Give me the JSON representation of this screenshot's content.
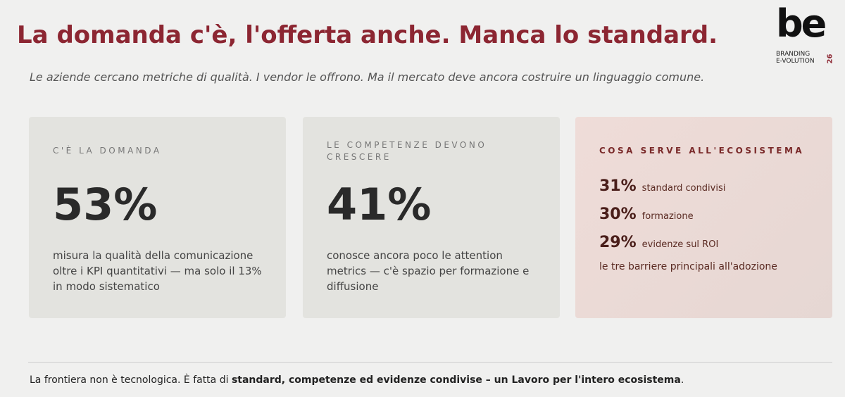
{
  "header": {
    "title": "La domanda c'è, l'offerta anche. Manca lo standard.",
    "subtitle": "Le aziende cercano metriche di qualità. I vendor le offrono. Ma il mercato deve ancora costruire un linguaggio comune."
  },
  "logo": {
    "mark": "be",
    "line1": "BRANDING",
    "line2": "E-VOLUTION",
    "year": "26"
  },
  "cards": [
    {
      "label": "C'È LA DOMANDA",
      "stat": "53%",
      "text": "misura la qualità della comunicazione oltre i KPI quantitativi — ma solo il 13% in modo sistematico"
    },
    {
      "label": "LE COMPETENZE DEVONO CRESCERE",
      "stat": "41%",
      "text": "conosce ancora poco le attention metrics — c'è spazio per formazione e diffusione"
    }
  ],
  "needs": {
    "label": "COSA SERVE ALL'ECOSISTEMA",
    "items": [
      {
        "stat": "31%",
        "text": "standard condivisi"
      },
      {
        "stat": "30%",
        "text": "formazione"
      },
      {
        "stat": "29%",
        "text": "evidenze sul ROI"
      }
    ],
    "note": "le tre barriere principali all'adozione"
  },
  "footer": {
    "lead": "La frontiera non è tecnologica. È fatta di ",
    "bold": "standard, competenze ed evidenze condivise – un Lavoro per l'intero ecosistema",
    "end": "."
  }
}
